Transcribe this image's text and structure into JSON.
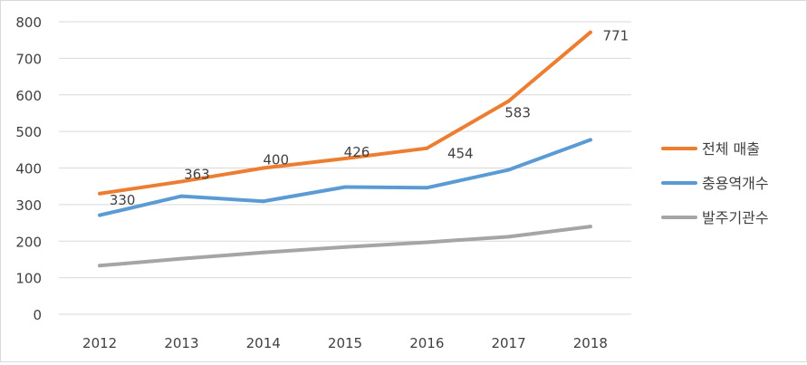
{
  "chart_data": {
    "type": "line",
    "categories": [
      "2012",
      "2013",
      "2014",
      "2015",
      "2016",
      "2017",
      "2018"
    ],
    "ylim": [
      0,
      800
    ],
    "yticks": [
      "0",
      "100",
      "200",
      "300",
      "400",
      "500",
      "600",
      "700",
      "800"
    ],
    "grid": true,
    "legend_position": "right",
    "series": [
      {
        "name": "전체 매출",
        "color": "#ed7d31",
        "values": [
          330,
          363,
          400,
          426,
          454,
          583,
          771
        ],
        "data_labels": [
          "330",
          "363",
          "400",
          "426",
          "454",
          "583",
          "771"
        ]
      },
      {
        "name": "충용역개수",
        "color": "#5b9bd5",
        "values": [
          271,
          323,
          309,
          348,
          346,
          395,
          477
        ]
      },
      {
        "name": "발주기관수",
        "color": "#a5a5a5",
        "values": [
          133,
          152,
          169,
          184,
          197,
          212,
          240
        ]
      }
    ]
  }
}
